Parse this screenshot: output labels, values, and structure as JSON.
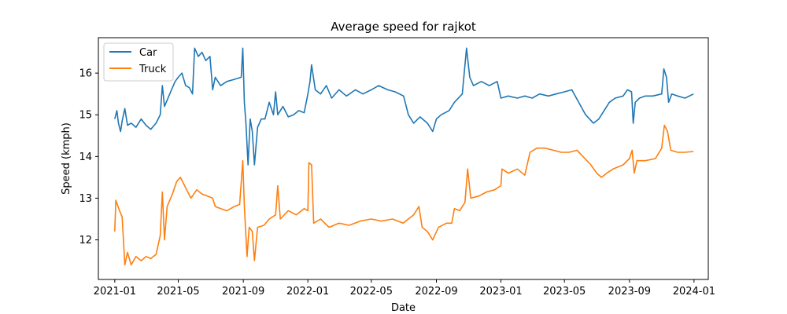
{
  "chart_data": {
    "type": "line",
    "title": "Average speed for rajkot",
    "xlabel": "Date",
    "ylabel": "Speed (kmph)",
    "xlim": [
      "2020-12-01",
      "2024-01-28"
    ],
    "ylim": [
      11.05,
      16.85
    ],
    "x_ticks": [
      "2021-01",
      "2021-05",
      "2021-09",
      "2022-01",
      "2022-05",
      "2022-09",
      "2023-01",
      "2023-05",
      "2023-09",
      "2024-01"
    ],
    "y_ticks": [
      12,
      13,
      14,
      15,
      16
    ],
    "legend_position": "upper-left",
    "grid": false,
    "series": [
      {
        "name": "Car",
        "color": "#1f77b4",
        "points": [
          [
            "2021-01-01",
            14.9
          ],
          [
            "2021-01-05",
            15.1
          ],
          [
            "2021-01-08",
            14.8
          ],
          [
            "2021-01-12",
            14.6
          ],
          [
            "2021-01-15",
            14.85
          ],
          [
            "2021-01-20",
            15.15
          ],
          [
            "2021-01-25",
            14.75
          ],
          [
            "2021-02-01",
            14.8
          ],
          [
            "2021-02-10",
            14.7
          ],
          [
            "2021-02-20",
            14.9
          ],
          [
            "2021-03-01",
            14.75
          ],
          [
            "2021-03-10",
            14.65
          ],
          [
            "2021-03-20",
            14.8
          ],
          [
            "2021-03-28",
            15.0
          ],
          [
            "2021-04-01",
            15.7
          ],
          [
            "2021-04-05",
            15.2
          ],
          [
            "2021-04-15",
            15.5
          ],
          [
            "2021-04-25",
            15.8
          ],
          [
            "2021-05-01",
            15.9
          ],
          [
            "2021-05-08",
            16.0
          ],
          [
            "2021-05-15",
            15.7
          ],
          [
            "2021-05-22",
            15.65
          ],
          [
            "2021-05-28",
            15.5
          ],
          [
            "2021-06-01",
            16.6
          ],
          [
            "2021-06-08",
            16.4
          ],
          [
            "2021-06-15",
            16.5
          ],
          [
            "2021-06-22",
            16.3
          ],
          [
            "2021-06-30",
            16.4
          ],
          [
            "2021-07-05",
            15.6
          ],
          [
            "2021-07-10",
            15.9
          ],
          [
            "2021-07-20",
            15.7
          ],
          [
            "2021-08-01",
            15.8
          ],
          [
            "2021-08-15",
            15.85
          ],
          [
            "2021-08-28",
            15.9
          ],
          [
            "2021-08-31",
            16.6
          ],
          [
            "2021-09-03",
            15.3
          ],
          [
            "2021-09-06",
            14.8
          ],
          [
            "2021-09-10",
            13.8
          ],
          [
            "2021-09-14",
            14.9
          ],
          [
            "2021-09-18",
            14.6
          ],
          [
            "2021-09-22",
            13.8
          ],
          [
            "2021-09-28",
            14.7
          ],
          [
            "2021-10-05",
            14.9
          ],
          [
            "2021-10-12",
            14.9
          ],
          [
            "2021-10-20",
            15.3
          ],
          [
            "2021-10-28",
            15.0
          ],
          [
            "2021-11-01",
            15.55
          ],
          [
            "2021-11-05",
            15.0
          ],
          [
            "2021-11-15",
            15.2
          ],
          [
            "2021-11-25",
            14.95
          ],
          [
            "2021-12-05",
            15.0
          ],
          [
            "2021-12-15",
            15.1
          ],
          [
            "2021-12-25",
            15.05
          ],
          [
            "2022-01-01",
            15.5
          ],
          [
            "2022-01-05",
            15.8
          ],
          [
            "2022-01-08",
            16.2
          ],
          [
            "2022-01-15",
            15.6
          ],
          [
            "2022-01-25",
            15.5
          ],
          [
            "2022-02-05",
            15.7
          ],
          [
            "2022-02-15",
            15.4
          ],
          [
            "2022-03-01",
            15.6
          ],
          [
            "2022-03-15",
            15.45
          ],
          [
            "2022-04-01",
            15.6
          ],
          [
            "2022-04-15",
            15.5
          ],
          [
            "2022-05-01",
            15.6
          ],
          [
            "2022-05-15",
            15.7
          ],
          [
            "2022-06-01",
            15.6
          ],
          [
            "2022-06-15",
            15.55
          ],
          [
            "2022-07-01",
            15.45
          ],
          [
            "2022-07-10",
            15.0
          ],
          [
            "2022-07-20",
            14.8
          ],
          [
            "2022-08-01",
            14.95
          ],
          [
            "2022-08-15",
            14.8
          ],
          [
            "2022-08-25",
            14.6
          ],
          [
            "2022-09-01",
            14.9
          ],
          [
            "2022-09-10",
            15.0
          ],
          [
            "2022-09-25",
            15.1
          ],
          [
            "2022-10-05",
            15.3
          ],
          [
            "2022-10-20",
            15.5
          ],
          [
            "2022-10-28",
            16.6
          ],
          [
            "2022-11-03",
            15.9
          ],
          [
            "2022-11-10",
            15.7
          ],
          [
            "2022-11-25",
            15.8
          ],
          [
            "2022-12-10",
            15.7
          ],
          [
            "2022-12-25",
            15.8
          ],
          [
            "2023-01-01",
            15.4
          ],
          [
            "2023-01-15",
            15.45
          ],
          [
            "2023-02-01",
            15.4
          ],
          [
            "2023-02-15",
            15.45
          ],
          [
            "2023-03-01",
            15.4
          ],
          [
            "2023-03-15",
            15.5
          ],
          [
            "2023-04-01",
            15.45
          ],
          [
            "2023-04-15",
            15.5
          ],
          [
            "2023-05-01",
            15.55
          ],
          [
            "2023-05-15",
            15.6
          ],
          [
            "2023-05-28",
            15.3
          ],
          [
            "2023-06-10",
            15.0
          ],
          [
            "2023-06-25",
            14.8
          ],
          [
            "2023-07-05",
            14.9
          ],
          [
            "2023-07-15",
            15.1
          ],
          [
            "2023-07-25",
            15.3
          ],
          [
            "2023-08-05",
            15.4
          ],
          [
            "2023-08-20",
            15.45
          ],
          [
            "2023-08-28",
            15.6
          ],
          [
            "2023-09-05",
            15.55
          ],
          [
            "2023-09-08",
            14.8
          ],
          [
            "2023-09-12",
            15.3
          ],
          [
            "2023-09-20",
            15.4
          ],
          [
            "2023-10-01",
            15.45
          ],
          [
            "2023-10-15",
            15.45
          ],
          [
            "2023-11-01",
            15.5
          ],
          [
            "2023-11-05",
            16.1
          ],
          [
            "2023-11-10",
            15.9
          ],
          [
            "2023-11-14",
            15.3
          ],
          [
            "2023-11-20",
            15.5
          ],
          [
            "2023-12-01",
            15.45
          ],
          [
            "2023-12-15",
            15.4
          ],
          [
            "2023-12-31",
            15.5
          ]
        ]
      },
      {
        "name": "Truck",
        "color": "#ff7f0e",
        "points": [
          [
            "2021-01-01",
            12.2
          ],
          [
            "2021-01-03",
            12.95
          ],
          [
            "2021-01-10",
            12.7
          ],
          [
            "2021-01-15",
            12.55
          ],
          [
            "2021-01-20",
            11.4
          ],
          [
            "2021-01-25",
            11.7
          ],
          [
            "2021-02-01",
            11.4
          ],
          [
            "2021-02-10",
            11.6
          ],
          [
            "2021-02-20",
            11.5
          ],
          [
            "2021-03-01",
            11.6
          ],
          [
            "2021-03-10",
            11.55
          ],
          [
            "2021-03-20",
            11.65
          ],
          [
            "2021-03-28",
            12.1
          ],
          [
            "2021-04-01",
            13.15
          ],
          [
            "2021-04-05",
            12.0
          ],
          [
            "2021-04-10",
            12.8
          ],
          [
            "2021-04-20",
            13.1
          ],
          [
            "2021-04-28",
            13.4
          ],
          [
            "2021-05-05",
            13.5
          ],
          [
            "2021-05-15",
            13.25
          ],
          [
            "2021-05-25",
            13.0
          ],
          [
            "2021-06-05",
            13.2
          ],
          [
            "2021-06-15",
            13.1
          ],
          [
            "2021-06-25",
            13.05
          ],
          [
            "2021-07-05",
            13.0
          ],
          [
            "2021-07-10",
            12.8
          ],
          [
            "2021-07-20",
            12.75
          ],
          [
            "2021-08-01",
            12.7
          ],
          [
            "2021-08-15",
            12.8
          ],
          [
            "2021-08-25",
            12.85
          ],
          [
            "2021-08-31",
            13.9
          ],
          [
            "2021-09-03",
            12.8
          ],
          [
            "2021-09-08",
            11.6
          ],
          [
            "2021-09-12",
            12.3
          ],
          [
            "2021-09-18",
            12.2
          ],
          [
            "2021-09-22",
            11.5
          ],
          [
            "2021-09-28",
            12.3
          ],
          [
            "2021-10-10",
            12.35
          ],
          [
            "2021-10-20",
            12.5
          ],
          [
            "2021-11-01",
            12.6
          ],
          [
            "2021-11-05",
            13.3
          ],
          [
            "2021-11-10",
            12.5
          ],
          [
            "2021-11-25",
            12.7
          ],
          [
            "2021-12-10",
            12.6
          ],
          [
            "2021-12-25",
            12.75
          ],
          [
            "2022-01-01",
            12.7
          ],
          [
            "2022-01-03",
            13.85
          ],
          [
            "2022-01-08",
            13.8
          ],
          [
            "2022-01-12",
            12.4
          ],
          [
            "2022-01-25",
            12.5
          ],
          [
            "2022-02-10",
            12.3
          ],
          [
            "2022-03-01",
            12.4
          ],
          [
            "2022-03-20",
            12.35
          ],
          [
            "2022-04-10",
            12.45
          ],
          [
            "2022-05-01",
            12.5
          ],
          [
            "2022-05-20",
            12.45
          ],
          [
            "2022-06-10",
            12.5
          ],
          [
            "2022-06-30",
            12.4
          ],
          [
            "2022-07-20",
            12.6
          ],
          [
            "2022-07-30",
            12.8
          ],
          [
            "2022-08-05",
            12.3
          ],
          [
            "2022-08-15",
            12.2
          ],
          [
            "2022-08-25",
            12.0
          ],
          [
            "2022-09-05",
            12.3
          ],
          [
            "2022-09-20",
            12.4
          ],
          [
            "2022-09-30",
            12.4
          ],
          [
            "2022-10-05",
            12.75
          ],
          [
            "2022-10-15",
            12.7
          ],
          [
            "2022-10-25",
            12.9
          ],
          [
            "2022-10-30",
            13.7
          ],
          [
            "2022-11-05",
            13.0
          ],
          [
            "2022-11-20",
            13.05
          ],
          [
            "2022-12-05",
            13.15
          ],
          [
            "2022-12-20",
            13.2
          ],
          [
            "2023-01-01",
            13.3
          ],
          [
            "2023-01-03",
            13.7
          ],
          [
            "2023-01-15",
            13.6
          ],
          [
            "2023-02-01",
            13.7
          ],
          [
            "2023-02-15",
            13.55
          ],
          [
            "2023-02-25",
            14.1
          ],
          [
            "2023-03-10",
            14.2
          ],
          [
            "2023-03-25",
            14.2
          ],
          [
            "2023-04-10",
            14.15
          ],
          [
            "2023-04-25",
            14.1
          ],
          [
            "2023-05-10",
            14.1
          ],
          [
            "2023-05-25",
            14.15
          ],
          [
            "2023-06-05",
            14.0
          ],
          [
            "2023-06-20",
            13.8
          ],
          [
            "2023-07-01",
            13.6
          ],
          [
            "2023-07-10",
            13.5
          ],
          [
            "2023-07-20",
            13.6
          ],
          [
            "2023-08-01",
            13.7
          ],
          [
            "2023-08-20",
            13.8
          ],
          [
            "2023-09-01",
            13.95
          ],
          [
            "2023-09-06",
            14.15
          ],
          [
            "2023-09-10",
            13.6
          ],
          [
            "2023-09-15",
            13.9
          ],
          [
            "2023-10-01",
            13.9
          ],
          [
            "2023-10-20",
            13.95
          ],
          [
            "2023-11-01",
            14.2
          ],
          [
            "2023-11-06",
            14.75
          ],
          [
            "2023-11-12",
            14.6
          ],
          [
            "2023-11-18",
            14.15
          ],
          [
            "2023-12-01",
            14.1
          ],
          [
            "2023-12-15",
            14.1
          ],
          [
            "2023-12-31",
            14.12
          ]
        ]
      }
    ]
  }
}
